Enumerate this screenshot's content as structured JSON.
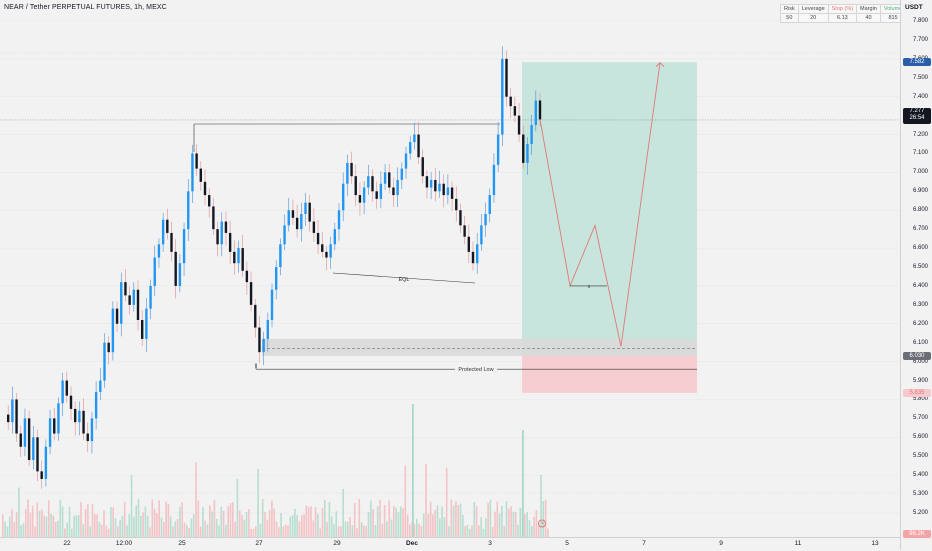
{
  "header": {
    "title": "NEAR / Tether PERPETUAL FUTURES, 1h, MEXC",
    "currency": "USDT"
  },
  "info_table": {
    "headers": [
      "Risk",
      "Leverage",
      "Stop (%)",
      "Margin",
      "Volume"
    ],
    "values": [
      "50",
      "20",
      "6.13",
      "40",
      "815"
    ]
  },
  "price_axis": {
    "ticks": [
      "7.800",
      "7.700",
      "7.600",
      "7.500",
      "7.400",
      "7.300",
      "7.200",
      "7.100",
      "7.000",
      "6.900",
      "6.800",
      "6.700",
      "6.600",
      "6.500",
      "6.400",
      "6.300",
      "6.200",
      "6.100",
      "6.000",
      "5.900",
      "5.800",
      "5.700",
      "5.600",
      "5.500",
      "5.400",
      "5.300",
      "5.200"
    ],
    "badges": {
      "target": "7.582",
      "current_price": "7.277",
      "countdown": "26:54",
      "entry": "6.030",
      "stop": "5.835",
      "volume": "96.2K"
    }
  },
  "time_axis": {
    "labels": [
      "22",
      "12:00",
      "25",
      "27",
      "29",
      "Dec",
      "3",
      "5",
      "7",
      "9",
      "11",
      "13"
    ]
  },
  "annotations": {
    "eql": "EQL",
    "protected_low": "Protected Low",
    "x_marker": "x"
  },
  "colors": {
    "up": "#2196f3",
    "down": "#131722",
    "profit_zone": "#bfe3d8",
    "loss_zone": "#f6c9cc",
    "path": "#e0787a",
    "price_badge": "#131722",
    "target_badge": "#2a5ea8"
  },
  "chart_data": {
    "type": "candlestick",
    "symbol": "NEAR / Tether PERPETUAL FUTURES",
    "interval": "1h",
    "exchange": "MEXC",
    "ylim": [
      5.15,
      7.85
    ],
    "close_path": [
      5.72,
      5.68,
      5.8,
      5.62,
      5.55,
      5.7,
      5.48,
      5.6,
      5.42,
      5.38,
      5.55,
      5.7,
      5.62,
      5.78,
      5.9,
      5.82,
      5.75,
      5.68,
      5.74,
      5.62,
      5.58,
      5.7,
      5.84,
      5.9,
      6.1,
      6.05,
      6.28,
      6.2,
      6.42,
      6.35,
      6.3,
      6.38,
      6.22,
      6.12,
      6.28,
      6.4,
      6.55,
      6.62,
      6.75,
      6.68,
      6.58,
      6.4,
      6.52,
      6.7,
      6.9,
      7.1,
      7.02,
      6.95,
      6.88,
      6.82,
      6.7,
      6.62,
      6.74,
      6.68,
      6.58,
      6.52,
      6.6,
      6.48,
      6.42,
      6.3,
      6.18,
      6.05,
      6.12,
      6.22,
      6.38,
      6.5,
      6.62,
      6.72,
      6.8,
      6.76,
      6.7,
      6.78,
      6.84,
      6.74,
      6.68,
      6.62,
      6.58,
      6.55,
      6.62,
      6.7,
      6.8,
      6.94,
      7.05,
      6.98,
      6.88,
      6.84,
      6.92,
      6.98,
      6.9,
      6.86,
      6.94,
      7.0,
      6.92,
      6.88,
      6.96,
      7.02,
      7.1,
      7.16,
      7.2,
      7.08,
      6.98,
      6.92,
      6.96,
      6.9,
      6.94,
      6.88,
      6.92,
      6.86,
      6.8,
      6.72,
      6.66,
      6.58,
      6.52,
      6.62,
      6.72,
      6.78,
      6.88,
      7.04,
      7.2,
      7.6,
      7.4,
      7.35,
      7.3,
      7.2,
      7.05,
      7.15,
      7.25,
      7.38,
      7.28
    ],
    "eql_level": 6.47,
    "protected_low": 5.96,
    "entry": 6.03,
    "stop": 5.835,
    "target": 7.582,
    "current_price": 7.277,
    "projected_path": [
      7.28,
      6.4,
      6.72,
      6.08,
      7.58
    ]
  }
}
